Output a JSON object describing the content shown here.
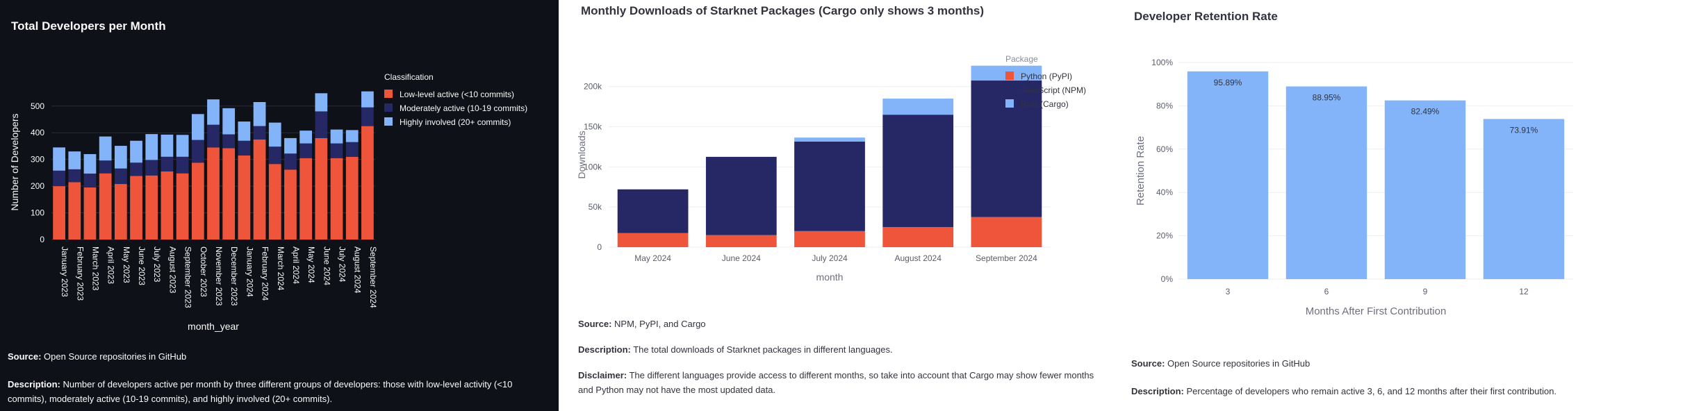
{
  "panels": {
    "developers": {
      "title": "Total Developers per Month",
      "source_label": "Source:",
      "source": "Open Source repositories in GitHub",
      "description_label": "Description:",
      "description": "Number of developers active per month by three different groups of developers: those with low-level activity (<10 commits), moderately active (10-19 commits), and highly involved (20+ commits)."
    },
    "downloads": {
      "title": "Monthly Downloads of Starknet Packages (Cargo only shows 3 months)",
      "source_label": "Source:",
      "source": "NPM, PyPI, and Cargo",
      "description_label": "Description:",
      "description": "The total downloads of Starknet packages in different languages.",
      "disclaimer_label": "Disclaimer:",
      "disclaimer": "The different languages provide access to different months, so take into account that Cargo may show fewer months and Python may not have the most updated data."
    },
    "retention": {
      "title": "Developer Retention Rate",
      "source_label": "Source:",
      "source": "Open Source repositories in GitHub",
      "description_label": "Description:",
      "description": "Percentage of developers who remain active 3, 6, and 12 months after their first contribution."
    }
  },
  "chart_data": [
    {
      "type": "bar",
      "stacked": true,
      "title": "Total Developers per Month",
      "xlabel": "month_year",
      "ylabel": "Number of Developers",
      "ylim": [
        0,
        580
      ],
      "yticks": [
        0,
        100,
        200,
        300,
        400,
        500
      ],
      "legend_title": "Classification",
      "legend_position": "top-right",
      "categories": [
        "January 2023",
        "February 2023",
        "March 2023",
        "April 2023",
        "May 2023",
        "June 2023",
        "July 2023",
        "August 2023",
        "September 2023",
        "October 2023",
        "November 2023",
        "December 2023",
        "January 2024",
        "February 2024",
        "March 2024",
        "April 2024",
        "May 2024",
        "June 2024",
        "July 2024",
        "August 2024",
        "September 2024"
      ],
      "series": [
        {
          "name": "Low-level active (<10 commits)",
          "color": "#ef553b",
          "values": [
            200,
            215,
            195,
            248,
            208,
            238,
            240,
            255,
            248,
            288,
            345,
            342,
            315,
            375,
            283,
            262,
            305,
            380,
            305,
            310,
            425
          ]
        },
        {
          "name": "Moderately active (10-19 commits)",
          "color": "#262866",
          "values": [
            58,
            48,
            52,
            48,
            58,
            50,
            58,
            55,
            62,
            85,
            85,
            52,
            55,
            50,
            65,
            60,
            55,
            100,
            55,
            55,
            70
          ]
        },
        {
          "name": "Highly involved (20+ commits)",
          "color": "#83b4f9",
          "values": [
            87,
            67,
            73,
            90,
            85,
            82,
            97,
            83,
            82,
            97,
            95,
            98,
            72,
            90,
            90,
            58,
            48,
            68,
            52,
            45,
            60
          ]
        }
      ]
    },
    {
      "type": "bar",
      "stacked": true,
      "title": "Monthly Downloads of Starknet Packages (Cargo only shows 3 months)",
      "xlabel": "month",
      "ylabel": "Downloads",
      "ylim": [
        0,
        230000
      ],
      "yticks": [
        0,
        50000,
        100000,
        150000,
        200000
      ],
      "ytick_labels": [
        "0",
        "50k",
        "100k",
        "150k",
        "200k"
      ],
      "legend_title": "Package",
      "legend_position": "top-right",
      "categories": [
        "May 2024",
        "June 2024",
        "July 2024",
        "August 2024",
        "September 2024"
      ],
      "series": [
        {
          "name": "Python (PyPI)",
          "color": "#ef553b",
          "values": [
            17500,
            15000,
            20000,
            25000,
            37500
          ]
        },
        {
          "name": "JavaScript (NPM)",
          "color": "#262866",
          "values": [
            54500,
            97500,
            111500,
            140000,
            170000
          ]
        },
        {
          "name": "Rust (Cargo)",
          "color": "#83b4f9",
          "values": [
            0,
            0,
            5000,
            20000,
            18500
          ]
        }
      ]
    },
    {
      "type": "bar",
      "title": "Developer Retention Rate",
      "xlabel": "Months After First Contribution",
      "ylabel": "Retention Rate",
      "ylim": [
        0,
        100
      ],
      "yticks": [
        0,
        20,
        40,
        60,
        80,
        100
      ],
      "ytick_labels": [
        "0%",
        "20%",
        "40%",
        "60%",
        "80%",
        "100%"
      ],
      "categories": [
        "3",
        "6",
        "9",
        "12"
      ],
      "values": [
        95.89,
        88.95,
        82.49,
        73.91
      ],
      "data_labels": [
        "95.89%",
        "88.95%",
        "82.49%",
        "73.91%"
      ],
      "color": "#83b4f9"
    }
  ]
}
